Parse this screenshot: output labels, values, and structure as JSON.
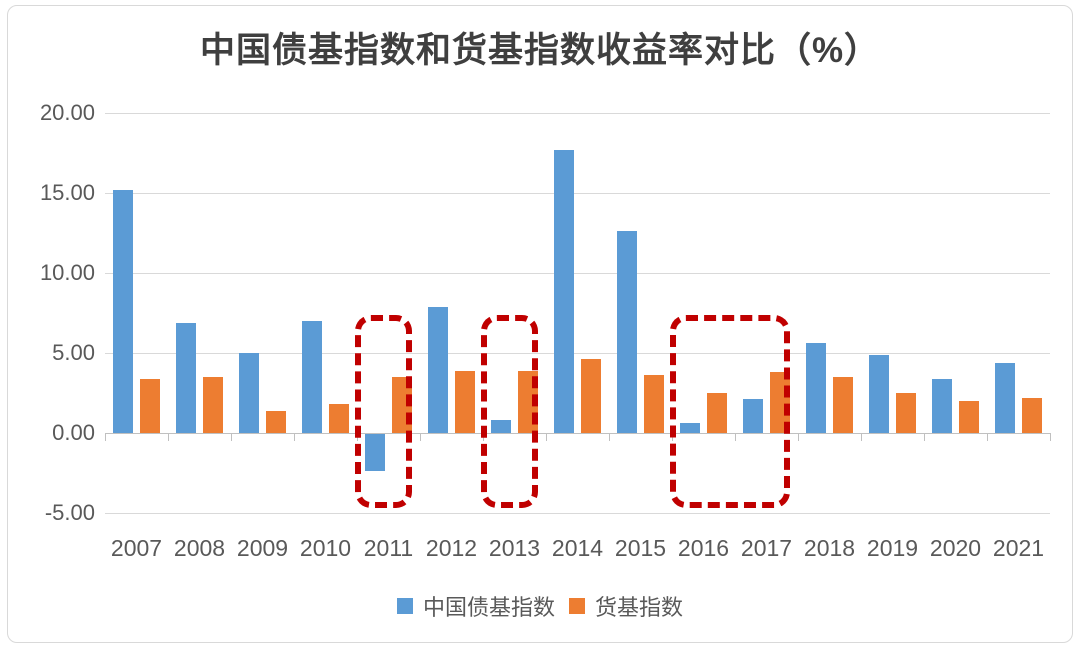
{
  "chart_data": {
    "type": "bar",
    "title": "中国债基指数和货基指数收益率对比（%）",
    "categories": [
      "2007",
      "2008",
      "2009",
      "2010",
      "2011",
      "2012",
      "2013",
      "2014",
      "2015",
      "2016",
      "2017",
      "2018",
      "2019",
      "2020",
      "2021"
    ],
    "series": [
      {
        "name": "中国债基指数",
        "color": "#5B9BD5",
        "values": [
          15.2,
          6.9,
          5.0,
          7.0,
          -2.3,
          7.9,
          0.8,
          17.7,
          12.6,
          0.6,
          2.1,
          5.6,
          4.9,
          3.4,
          4.4
        ]
      },
      {
        "name": "货基指数",
        "color": "#ED7D31",
        "values": [
          3.4,
          3.5,
          1.4,
          1.8,
          3.5,
          3.9,
          3.9,
          4.6,
          3.6,
          2.5,
          3.8,
          3.5,
          2.5,
          2.0,
          2.2
        ]
      }
    ],
    "xlabel": "",
    "ylabel": "",
    "ylim": [
      -5,
      20
    ],
    "yticks": [
      {
        "value": 20,
        "label": "20.00"
      },
      {
        "value": 15,
        "label": "15.00"
      },
      {
        "value": 10,
        "label": "10.00"
      },
      {
        "value": 5,
        "label": "5.00"
      },
      {
        "value": 0,
        "label": "0.00"
      },
      {
        "value": -5,
        "label": "-5.00"
      }
    ],
    "grid": true,
    "legend_position": "bottom",
    "highlights": [
      {
        "from": "2011",
        "to": "2011"
      },
      {
        "from": "2013",
        "to": "2013"
      },
      {
        "from": "2016",
        "to": "2017"
      }
    ],
    "highlight_color": "#C00000",
    "gridline_color": "#d9d9d9"
  }
}
